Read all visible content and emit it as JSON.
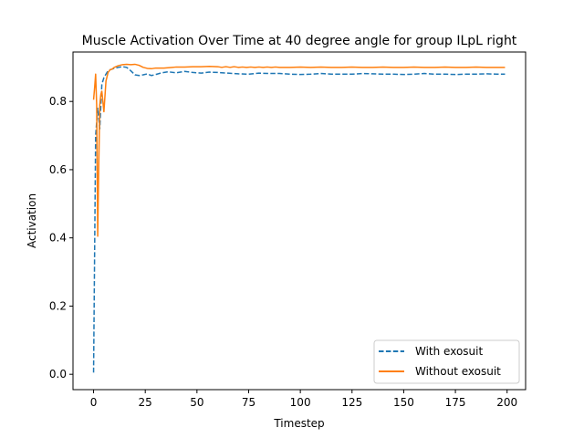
{
  "chart_data": {
    "type": "line",
    "title": "Muscle Activation Over Time at 40 degree angle for group ILpL right",
    "xlabel": "Timestep",
    "ylabel": "Activation",
    "xlim": [
      -9.95,
      208.95
    ],
    "ylim": [
      -0.045,
      0.945
    ],
    "xticks": [
      0,
      25,
      50,
      75,
      100,
      125,
      150,
      175,
      200
    ],
    "yticks": [
      0.0,
      0.2,
      0.4,
      0.6,
      0.8
    ],
    "ytick_labels": [
      "0.0",
      "0.2",
      "0.4",
      "0.6",
      "0.8"
    ],
    "grid": false,
    "legend_position": "lower right",
    "series": [
      {
        "name": "With exosuit",
        "color": "#1f77b4",
        "style": "dashed",
        "x": [
          0,
          1,
          2,
          3,
          4,
          5,
          6,
          7,
          8,
          9,
          10,
          12,
          14,
          16,
          18,
          20,
          22,
          24,
          26,
          28,
          30,
          33,
          36,
          40,
          44,
          48,
          52,
          56,
          60,
          65,
          70,
          75,
          80,
          85,
          90,
          95,
          100,
          105,
          110,
          115,
          120,
          125,
          130,
          135,
          140,
          145,
          150,
          155,
          160,
          165,
          170,
          175,
          180,
          185,
          190,
          195,
          199
        ],
        "y": [
          0.005,
          0.7,
          0.78,
          0.72,
          0.85,
          0.87,
          0.88,
          0.89,
          0.893,
          0.895,
          0.897,
          0.9,
          0.902,
          0.9,
          0.89,
          0.878,
          0.876,
          0.878,
          0.881,
          0.876,
          0.879,
          0.884,
          0.887,
          0.884,
          0.888,
          0.885,
          0.883,
          0.886,
          0.885,
          0.883,
          0.881,
          0.88,
          0.883,
          0.882,
          0.882,
          0.88,
          0.879,
          0.88,
          0.882,
          0.88,
          0.88,
          0.88,
          0.882,
          0.881,
          0.88,
          0.88,
          0.879,
          0.88,
          0.882,
          0.88,
          0.88,
          0.879,
          0.88,
          0.88,
          0.881,
          0.88,
          0.88
        ]
      },
      {
        "name": "Without exosuit",
        "color": "#ff7f0e",
        "style": "solid",
        "x": [
          0,
          0.5,
          1,
          1.5,
          2,
          2.5,
          3,
          3.5,
          4,
          5,
          6,
          7,
          8,
          9,
          10,
          12,
          14,
          16,
          18,
          20,
          22,
          24,
          26,
          28,
          30,
          34,
          38,
          40,
          44,
          48,
          52,
          56,
          60,
          62,
          64,
          66,
          68,
          70,
          72,
          74,
          76,
          78,
          80,
          82,
          84,
          86,
          88,
          90,
          95,
          100,
          105,
          110,
          115,
          120,
          125,
          130,
          135,
          140,
          145,
          150,
          155,
          160,
          165,
          170,
          175,
          180,
          185,
          190,
          195,
          199
        ],
        "y": [
          0.805,
          0.84,
          0.88,
          0.79,
          0.405,
          0.61,
          0.79,
          0.82,
          0.83,
          0.77,
          0.86,
          0.885,
          0.893,
          0.895,
          0.9,
          0.905,
          0.908,
          0.909,
          0.908,
          0.909,
          0.906,
          0.9,
          0.897,
          0.896,
          0.898,
          0.898,
          0.9,
          0.901,
          0.901,
          0.902,
          0.902,
          0.903,
          0.902,
          0.9,
          0.902,
          0.9,
          0.902,
          0.9,
          0.901,
          0.9,
          0.901,
          0.9,
          0.901,
          0.9,
          0.901,
          0.9,
          0.901,
          0.9,
          0.9,
          0.901,
          0.9,
          0.901,
          0.9,
          0.9,
          0.901,
          0.9,
          0.9,
          0.901,
          0.9,
          0.9,
          0.901,
          0.9,
          0.9,
          0.901,
          0.9,
          0.9,
          0.901,
          0.9,
          0.9,
          0.9
        ]
      }
    ]
  }
}
